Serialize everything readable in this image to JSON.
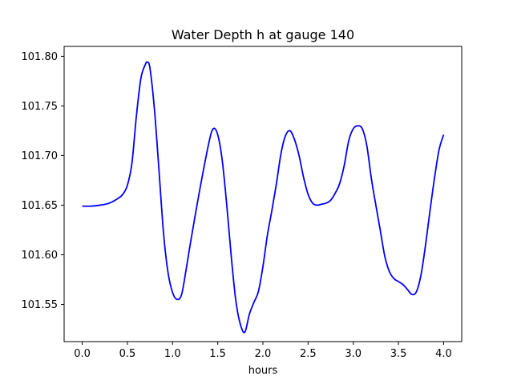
{
  "chart_data": {
    "type": "line",
    "title": "Water Depth h at gauge 140",
    "xlabel": "hours",
    "ylabel": "",
    "xlim": [
      -0.2,
      4.2
    ],
    "ylim": [
      101.5125,
      101.81
    ],
    "xticks": [
      0.0,
      0.5,
      1.0,
      1.5,
      2.0,
      2.5,
      3.0,
      3.5,
      4.0
    ],
    "xtick_labels": [
      "0.0",
      "0.5",
      "1.0",
      "1.5",
      "2.0",
      "2.5",
      "3.0",
      "3.5",
      "4.0"
    ],
    "yticks": [
      101.55,
      101.6,
      101.65,
      101.7,
      101.75,
      101.8
    ],
    "ytick_labels": [
      "101.55",
      "101.60",
      "101.65",
      "101.70",
      "101.75",
      "101.80"
    ],
    "grid": false,
    "line_color": "#0000ff",
    "series": [
      {
        "x": [
          0.0,
          0.1,
          0.2,
          0.3,
          0.4,
          0.45,
          0.5,
          0.55,
          0.6,
          0.65,
          0.7,
          0.72,
          0.75,
          0.8,
          0.85,
          0.9,
          0.95,
          1.0,
          1.05,
          1.1,
          1.15,
          1.2,
          1.3,
          1.4,
          1.45,
          1.5,
          1.55,
          1.6,
          1.65,
          1.7,
          1.75,
          1.8,
          1.85,
          1.9,
          1.95,
          2.0,
          2.05,
          2.1,
          2.15,
          2.2,
          2.25,
          2.3,
          2.35,
          2.4,
          2.45,
          2.5,
          2.55,
          2.6,
          2.65,
          2.7,
          2.75,
          2.8,
          2.85,
          2.9,
          2.95,
          3.0,
          3.05,
          3.1,
          3.15,
          3.2,
          3.25,
          3.3,
          3.35,
          3.4,
          3.45,
          3.5,
          3.55,
          3.6,
          3.65,
          3.7,
          3.75,
          3.8,
          3.85,
          3.9,
          3.95,
          4.0
        ],
        "y": [
          101.649,
          101.649,
          101.65,
          101.652,
          101.657,
          101.661,
          101.67,
          101.692,
          101.74,
          101.778,
          101.792,
          101.794,
          101.788,
          101.746,
          101.685,
          101.622,
          101.582,
          101.562,
          101.555,
          101.56,
          101.585,
          101.613,
          101.665,
          101.712,
          101.727,
          101.721,
          101.695,
          101.65,
          101.598,
          101.554,
          101.53,
          101.522,
          101.54,
          101.552,
          101.563,
          101.588,
          101.62,
          101.645,
          101.672,
          101.702,
          101.72,
          101.725,
          101.716,
          101.7,
          101.678,
          101.661,
          101.652,
          101.65,
          101.651,
          101.652,
          101.655,
          101.662,
          101.672,
          101.69,
          101.715,
          101.727,
          101.73,
          101.727,
          101.71,
          101.677,
          101.65,
          101.624,
          101.598,
          101.583,
          101.576,
          101.573,
          101.57,
          101.565,
          101.56,
          101.563,
          101.58,
          101.61,
          101.645,
          101.678,
          101.706,
          101.721
        ]
      }
    ]
  }
}
